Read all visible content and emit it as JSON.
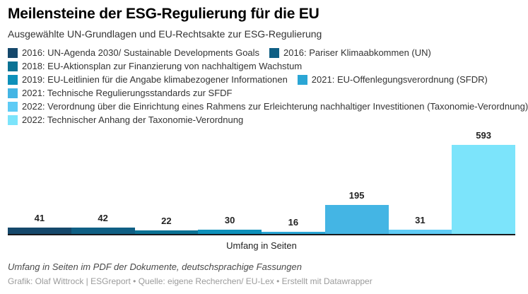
{
  "header": {
    "title": "Meilensteine der ESG-Regulierung für die EU",
    "subtitle": "Ausgewählte UN-Grundlagen und EU-Rechtsakte zur ESG-Regulierung"
  },
  "legend": {
    "items": [
      {
        "label": "2016: UN-Agenda 2030/ Sustainable Developments Goals",
        "color": "#15486b"
      },
      {
        "label": "2016: Pariser Klimaabkommen (UN)",
        "color": "#0f5f84"
      },
      {
        "label": "2018: EU-Aktionsplan zur Finanzierung von nachhaltigem Wachstum",
        "color": "#0a7294"
      },
      {
        "label": "2019: EU-Leitlinien für die Angabe klimabezogener Informationen",
        "color": "#0d90ba"
      },
      {
        "label": "2021: EU-Offenlegungsverordnung (SFDR)",
        "color": "#2ba6d5"
      },
      {
        "label": "2021: Technische Regulierungsstandards zur SFDF",
        "color": "#44b5e4"
      },
      {
        "label": "2022: Verordnung über die Einrichtung eines Rahmens zur Erleichterung nachhaltiger Investitionen (Taxonomie-Verordnung)",
        "color": "#5ecbf5"
      },
      {
        "label": "2022: Technischer Anhang der Taxonomie-Verordnung",
        "color": "#7ce4fb"
      }
    ]
  },
  "chart_data": {
    "type": "bar",
    "title": "Meilensteine der ESG-Regulierung für die EU",
    "subtitle": "Ausgewählte UN-Grundlagen und EU-Rechtsakte zur ESG-Regulierung",
    "categories": [
      "2016: UN-Agenda 2030/ Sustainable Developments Goals",
      "2016: Pariser Klimaabkommen (UN)",
      "2018: EU-Aktionsplan zur Finanzierung von nachhaltigem Wachstum",
      "2019: EU-Leitlinien für die Angabe klimabezogener Informationen",
      "2021: EU-Offenlegungsverordnung (SFDR)",
      "2021: Technische Regulierungsstandards zur SFDF",
      "2022: Verordnung über die Einrichtung eines Rahmens zur Erleichterung nachhaltiger Investitionen (Taxonomie-Verordnung)",
      "2022: Technischer Anhang der Taxonomie-Verordnung"
    ],
    "values": [
      41,
      42,
      22,
      30,
      16,
      195,
      31,
      593
    ],
    "colors": [
      "#15486b",
      "#0f5f84",
      "#0a7294",
      "#0d90ba",
      "#2ba6d5",
      "#44b5e4",
      "#5ecbf5",
      "#7ce4fb"
    ],
    "value_labels": [
      "41",
      "42",
      "22",
      "30",
      "16",
      "195",
      "31",
      "593"
    ],
    "xlabel": "Umfang in Seiten",
    "ylabel": "",
    "ylim": [
      0,
      600
    ],
    "grid": false,
    "legend_position": "top",
    "bar_gap": 0
  },
  "axis": {
    "xlabel": "Umfang in Seiten"
  },
  "footer": {
    "notes": "Umfang in Seiten im PDF der Dokumente, deutschsprachige Fassungen",
    "credits": "Grafik: Olaf Wittrock | ESGreport • Quelle: eigene Recherchen/ EU-Lex • Erstellt mit Datawrapper"
  }
}
